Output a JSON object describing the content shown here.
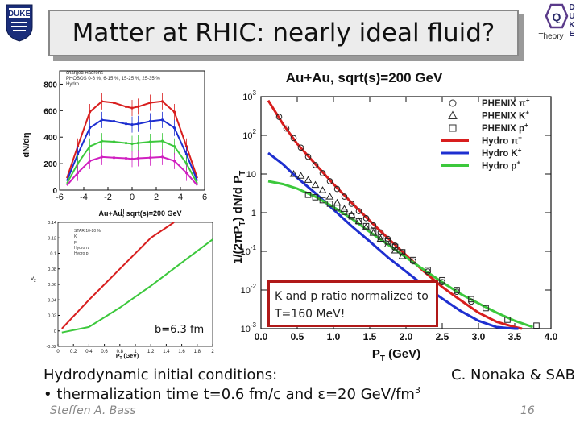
{
  "slide": {
    "title": "Matter at RHIC: nearly ideal fluid?",
    "duke_logo_text": "DUKE",
    "theory_logo": {
      "letters": [
        "Q",
        "D",
        "U",
        "K",
        "E"
      ],
      "label": "Theory"
    },
    "ratio_note_line1": "K and p ratio normalized to",
    "ratio_note_line2": "T=160 MeV!",
    "impact_parameter": "b=6.3 fm",
    "body_line1": "Hydrodynamic initial conditions:",
    "body_line2_prefix": "• thermalization time ",
    "body_line2_time": "t=0.6 fm/c",
    "body_line2_mid": " and ",
    "body_line2_eps": "ε=20 GeV/fm",
    "body_line2_exp": "3",
    "credit": "C. Nonaka & SAB",
    "footer_name": "Steffen A. Bass",
    "page_number": "16",
    "colors": {
      "red": "#d81e1e",
      "blue": "#1e2fd0",
      "green": "#3cc83c",
      "magenta": "#d020c0",
      "box_border": "#b01818"
    }
  },
  "chart_data": [
    {
      "type": "line",
      "title": "Au+Au, sqrt(s)=200 GeV",
      "xlabel": "P",
      "xlabel_sub": "T",
      "xlabel_unit": " (GeV)",
      "ylabel": "1/(2πP",
      "ylabel_sub": "T",
      "ylabel_rest": ") dN/d P",
      "ylabel_sub2": "T",
      "xlim": [
        0.0,
        4.0
      ],
      "ylim": [
        0.001,
        1000
      ],
      "yscale": "log",
      "xticks": [
        "0.0",
        "0.5",
        "1.0",
        "1.5",
        "2.0",
        "2.5",
        "3.0",
        "3.5",
        "4.0"
      ],
      "yticks": [
        {
          "base": "10",
          "exp": "3"
        },
        {
          "base": "10",
          "exp": "2"
        },
        {
          "base": "10",
          "exp": ""
        },
        {
          "base": "1",
          "exp": ""
        },
        {
          "base": "10",
          "exp": "-1"
        },
        {
          "base": "10",
          "exp": "-2"
        },
        {
          "base": "10",
          "exp": "-3"
        }
      ],
      "legend_position": "top-right",
      "legend": [
        {
          "label": "PHENIX π",
          "sup": "+",
          "marker": "circle"
        },
        {
          "label": "PHENIX K",
          "sup": "+",
          "marker": "triangle"
        },
        {
          "label": "PHENIX p",
          "sup": "+",
          "marker": "square"
        },
        {
          "label": "Hydro π",
          "sup": "+",
          "color": "#d81e1e"
        },
        {
          "label": "Hydro K",
          "sup": "+",
          "color": "#1e2fd0"
        },
        {
          "label": "Hydro p",
          "sup": "+",
          "color": "#3cc83c"
        }
      ],
      "series": [
        {
          "name": "Hydro π+",
          "kind": "line",
          "color": "#d81e1e",
          "x": [
            0.1,
            0.3,
            0.5,
            0.75,
            1.0,
            1.25,
            1.5,
            1.75,
            2.0,
            2.25,
            2.5,
            2.75,
            3.0,
            3.25,
            3.5,
            3.6
          ],
          "y": [
            800,
            200,
            60,
            18,
            5.5,
            1.8,
            0.62,
            0.22,
            0.08,
            0.03,
            0.012,
            0.0055,
            0.0026,
            0.0015,
            0.0011,
            0.001
          ]
        },
        {
          "name": "Hydro K+",
          "kind": "line",
          "color": "#1e2fd0",
          "x": [
            0.1,
            0.3,
            0.5,
            0.75,
            1.0,
            1.25,
            1.5,
            1.75,
            2.0,
            2.25,
            2.5,
            2.75,
            3.0,
            3.25,
            3.5,
            3.55
          ],
          "y": [
            35,
            18,
            8,
            3.2,
            1.2,
            0.45,
            0.18,
            0.07,
            0.03,
            0.013,
            0.006,
            0.0029,
            0.0016,
            0.0011,
            0.001,
            0.001
          ]
        },
        {
          "name": "Hydro p+",
          "kind": "line",
          "color": "#3cc83c",
          "x": [
            0.1,
            0.3,
            0.5,
            0.75,
            1.0,
            1.25,
            1.5,
            1.75,
            2.0,
            2.25,
            2.5,
            2.75,
            3.0,
            3.25,
            3.5,
            3.75
          ],
          "y": [
            6.5,
            5.5,
            4.2,
            2.6,
            1.4,
            0.7,
            0.32,
            0.15,
            0.07,
            0.033,
            0.016,
            0.008,
            0.0045,
            0.0026,
            0.0016,
            0.0011
          ]
        },
        {
          "name": "PHENIX π+",
          "kind": "points",
          "marker": "circle",
          "x": [
            0.25,
            0.35,
            0.45,
            0.55,
            0.65,
            0.75,
            0.85,
            0.95,
            1.05,
            1.15,
            1.25,
            1.35,
            1.45,
            1.55,
            1.65,
            1.75,
            1.85,
            1.95,
            2.1,
            2.3,
            2.5,
            2.7,
            2.9
          ],
          "y": [
            300,
            150,
            85,
            48,
            28,
            17,
            10.5,
            6.5,
            4.1,
            2.6,
            1.7,
            1.1,
            0.72,
            0.47,
            0.31,
            0.21,
            0.14,
            0.095,
            0.055,
            0.03,
            0.016,
            0.009,
            0.005
          ]
        },
        {
          "name": "PHENIX K+",
          "kind": "points",
          "marker": "triangle",
          "x": [
            0.45,
            0.55,
            0.65,
            0.75,
            0.85,
            0.95,
            1.05,
            1.15,
            1.25,
            1.35,
            1.45,
            1.55,
            1.65,
            1.75,
            1.85,
            1.95
          ],
          "y": [
            10,
            9,
            7,
            5.2,
            3.8,
            2.6,
            1.8,
            1.25,
            0.88,
            0.6,
            0.42,
            0.3,
            0.21,
            0.15,
            0.105,
            0.075
          ]
        },
        {
          "name": "PHENIX p+",
          "kind": "points",
          "marker": "square",
          "x": [
            0.65,
            0.75,
            0.85,
            0.95,
            1.05,
            1.15,
            1.25,
            1.35,
            1.45,
            1.55,
            1.65,
            1.75,
            1.85,
            1.95,
            2.1,
            2.3,
            2.5,
            2.7,
            2.9,
            3.1,
            3.4,
            3.8
          ],
          "y": [
            2.9,
            2.5,
            2.1,
            1.7,
            1.35,
            1.05,
            0.8,
            0.6,
            0.45,
            0.33,
            0.24,
            0.18,
            0.13,
            0.095,
            0.06,
            0.033,
            0.018,
            0.01,
            0.0058,
            0.0034,
            0.0017,
            0.0012
          ]
        }
      ]
    },
    {
      "type": "line",
      "ylabel": "dN/dη",
      "xlabel": "η",
      "xlim": [
        -6,
        6
      ],
      "ylim": [
        0,
        900
      ],
      "xticks": [
        "-6",
        "-4",
        "-2",
        "0",
        "2",
        "4",
        "6"
      ],
      "yticks": [
        "0",
        "200",
        "400",
        "600",
        "800"
      ],
      "legend_position": "top-left",
      "legend": [
        "charged Hadrons",
        "PHOBOS 0-6 %, 6-15 %, 15-25 %, 25-35 %",
        "Hydro"
      ],
      "series": [
        {
          "name": "0-6 %",
          "color": "#d81e1e",
          "x": [
            -5.4,
            -4.5,
            -3.5,
            -2.5,
            -1.5,
            -0.5,
            0,
            0.5,
            1.5,
            2.5,
            3.5,
            4.5,
            5.4
          ],
          "y": [
            90,
            330,
            590,
            670,
            660,
            630,
            620,
            630,
            660,
            670,
            590,
            330,
            90
          ]
        },
        {
          "name": "6-15 %",
          "color": "#1e2fd0",
          "x": [
            -5.4,
            -4.5,
            -3.5,
            -2.5,
            -1.5,
            -0.5,
            0,
            0.5,
            1.5,
            2.5,
            3.5,
            4.5,
            5.4
          ],
          "y": [
            70,
            270,
            470,
            530,
            520,
            500,
            495,
            500,
            520,
            530,
            470,
            270,
            70
          ]
        },
        {
          "name": "15-25 %",
          "color": "#3cc83c",
          "x": [
            -5.4,
            -4.5,
            -3.5,
            -2.5,
            -1.5,
            -0.5,
            0,
            0.5,
            1.5,
            2.5,
            3.5,
            4.5,
            5.4
          ],
          "y": [
            50,
            200,
            330,
            370,
            365,
            355,
            350,
            355,
            365,
            370,
            330,
            200,
            50
          ]
        },
        {
          "name": "25-35 %",
          "color": "#d020c0",
          "x": [
            -5.4,
            -4.5,
            -3.5,
            -2.5,
            -1.5,
            -0.5,
            0,
            0.5,
            1.5,
            2.5,
            3.5,
            4.5,
            5.4
          ],
          "y": [
            35,
            130,
            220,
            250,
            245,
            240,
            235,
            240,
            245,
            250,
            220,
            130,
            35
          ]
        }
      ],
      "caption": "Au+Au, sqrt(s)=200 GeV"
    },
    {
      "type": "line",
      "ylabel": "v",
      "ylabel_sub": "2",
      "xlabel": "P",
      "xlabel_sub": "T",
      "xlabel_unit": " (GeV)",
      "xlim": [
        0,
        2.0
      ],
      "ylim": [
        -0.02,
        0.14
      ],
      "xticks": [
        "0",
        "0.2",
        "0.4",
        "0.6",
        "0.8",
        "1",
        "1.2",
        "1.4",
        "1.6",
        "1.8",
        "2"
      ],
      "yticks": [
        "-0.02",
        "0",
        "0.02",
        "0.04",
        "0.06",
        "0.08",
        "0.1",
        "0.12",
        "0.14"
      ],
      "legend_position": "top-left",
      "legend": [
        "STAR 10-20 %",
        "K",
        "p",
        "Hydro π",
        "Hydro p"
      ],
      "series": [
        {
          "name": "Hydro π",
          "color": "#d81e1e",
          "x": [
            0.05,
            0.4,
            0.8,
            1.2,
            1.5
          ],
          "y": [
            0.003,
            0.04,
            0.08,
            0.12,
            0.14
          ]
        },
        {
          "name": "Hydro p",
          "color": "#3cc83c",
          "x": [
            0.05,
            0.4,
            0.8,
            1.2,
            1.6,
            2.0
          ],
          "y": [
            -0.002,
            0.005,
            0.03,
            0.058,
            0.088,
            0.118
          ]
        }
      ]
    }
  ]
}
